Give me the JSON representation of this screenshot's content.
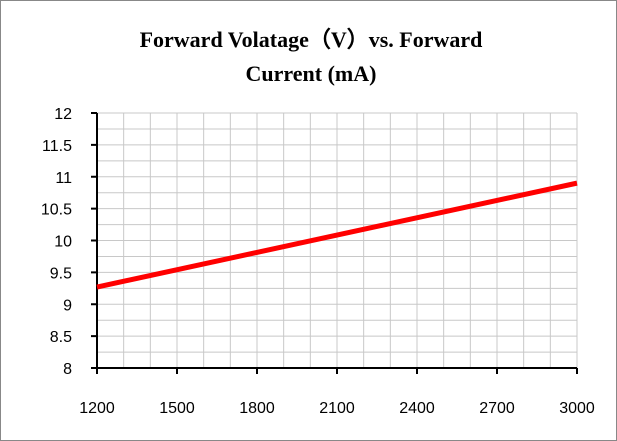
{
  "chart_data": {
    "type": "line",
    "title_line1": "Forward Volatage（V）vs. Forward",
    "title_line2": "Current (mA)",
    "xlabel": "",
    "ylabel": "",
    "xlim": [
      1200,
      3000
    ],
    "ylim": [
      8,
      12
    ],
    "x_ticks": [
      1200,
      1500,
      1800,
      2100,
      2400,
      2700,
      3000
    ],
    "y_ticks": [
      "8",
      "8.5",
      "9",
      "9.5",
      "10",
      "10.5",
      "11",
      "11.5",
      "12"
    ],
    "x_minor_step": 100,
    "y_minor_step": 0.25,
    "grid": true,
    "legend": "none",
    "series": [
      {
        "color": "#ff0000",
        "x": [
          1200,
          3000
        ],
        "y": [
          9.27,
          10.9
        ]
      }
    ]
  }
}
